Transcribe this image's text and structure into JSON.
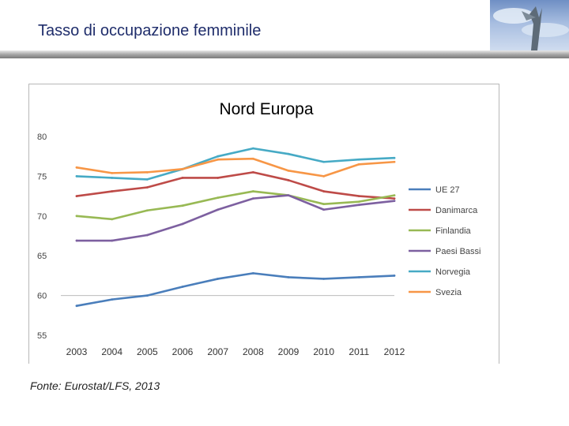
{
  "slide": {
    "title": "Tasso di occupazione femminile",
    "source": "Fonte: Eurostat/LFS, 2013"
  },
  "header_image": {
    "icon": "sculpture-photo-icon"
  },
  "chart_data": {
    "type": "line",
    "title": "Nord Europa",
    "xlabel": "",
    "ylabel": "",
    "x": [
      "2003",
      "2004",
      "2005",
      "2006",
      "2007",
      "2008",
      "2009",
      "2010",
      "2011",
      "2012"
    ],
    "y_ticks": [
      "80",
      "75",
      "70",
      "65",
      "60",
      "55"
    ],
    "ylim": [
      55,
      80
    ],
    "grid": false,
    "legend_position": "right",
    "series": [
      {
        "name": "UE 27",
        "color": "#4a7ebb",
        "values": [
          58.7,
          59.5,
          60.0,
          61.1,
          62.1,
          62.8,
          62.3,
          62.1,
          62.3,
          62.5
        ]
      },
      {
        "name": "Danimarca",
        "color": "#be4b48",
        "values": [
          72.5,
          73.1,
          73.6,
          74.8,
          74.8,
          75.5,
          74.5,
          73.1,
          72.5,
          72.2
        ]
      },
      {
        "name": "Finlandia",
        "color": "#98b954",
        "values": [
          70.0,
          69.6,
          70.7,
          71.3,
          72.3,
          73.1,
          72.6,
          71.5,
          71.8,
          72.6
        ]
      },
      {
        "name": "Paesi Bassi",
        "color": "#7d60a0",
        "values": [
          66.9,
          66.9,
          67.6,
          69.0,
          70.8,
          72.2,
          72.6,
          70.8,
          71.4,
          71.9
        ]
      },
      {
        "name": "Norvegia",
        "color": "#46aac5",
        "values": [
          75.0,
          74.8,
          74.6,
          75.9,
          77.5,
          78.5,
          77.8,
          76.8,
          77.1,
          77.3
        ]
      },
      {
        "name": "Svezia",
        "color": "#f79646",
        "values": [
          76.1,
          75.4,
          75.5,
          75.9,
          77.1,
          77.2,
          75.7,
          75.0,
          76.5,
          76.8
        ]
      }
    ]
  }
}
